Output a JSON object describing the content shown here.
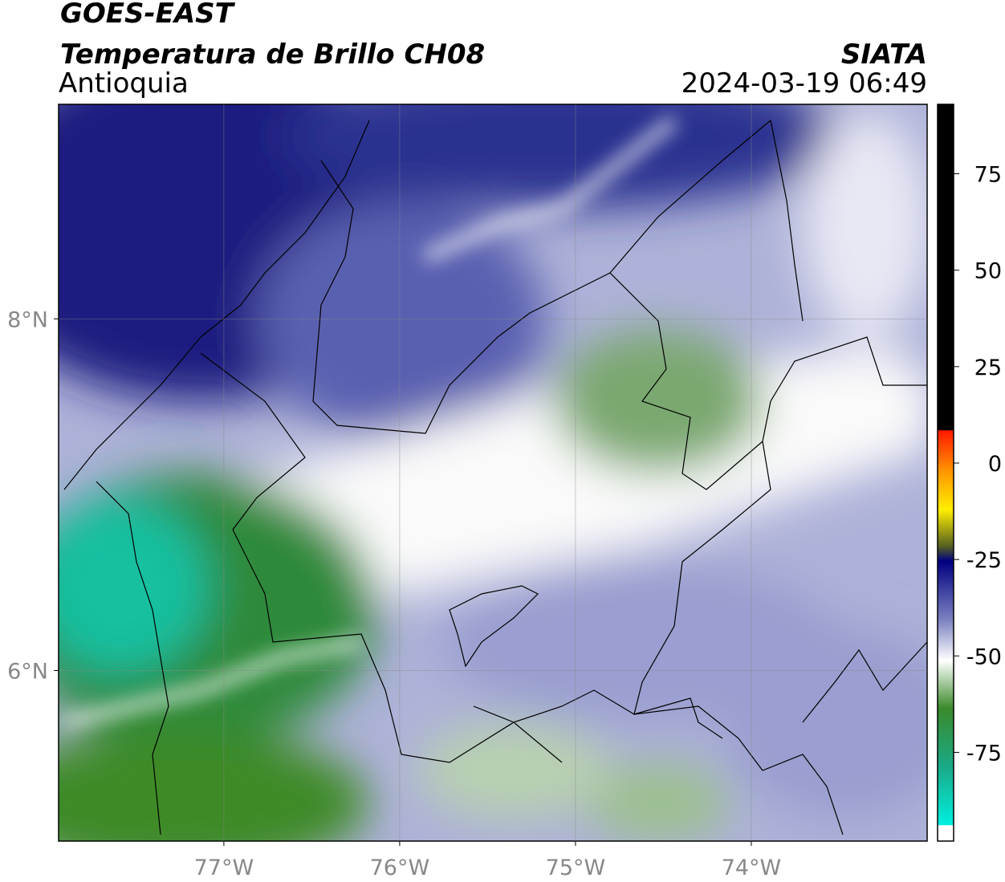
{
  "header": {
    "title": "GOES-EAST",
    "subtitle": "Temperatura de Brillo CH08",
    "region": "Antioquia",
    "source": "SIATA",
    "datetime": "2024-03-19 06:49"
  },
  "map": {
    "lon_range": [
      -77.94,
      -73.0
    ],
    "lat_range": [
      5.03,
      9.22
    ],
    "lon_ticks": [
      {
        "value": -77,
        "label": "77°W"
      },
      {
        "value": -76,
        "label": "76°W"
      },
      {
        "value": -75,
        "label": "75°W"
      },
      {
        "value": -74,
        "label": "74°W"
      }
    ],
    "lat_ticks": [
      {
        "value": 8,
        "label": "8°N"
      },
      {
        "value": 6,
        "label": "6°N"
      }
    ],
    "grid": true
  },
  "colorbar": {
    "range": [
      -98,
      93
    ],
    "ticks": [
      75,
      50,
      25,
      0,
      -25,
      -50,
      -75
    ]
  }
}
